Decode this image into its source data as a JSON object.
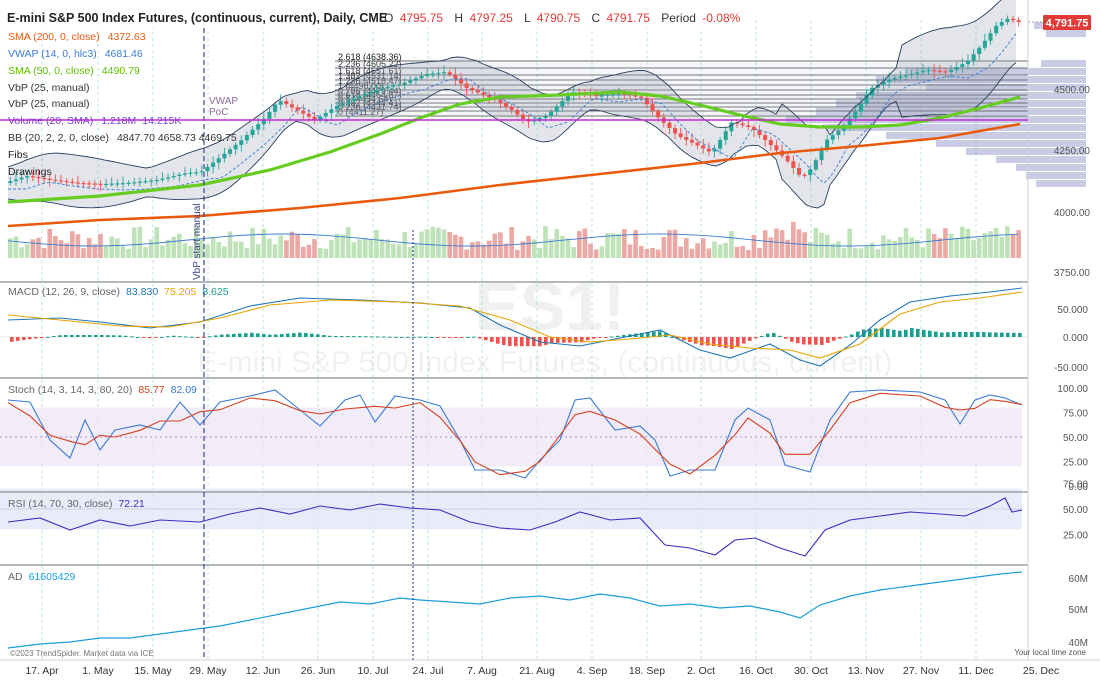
{
  "header": {
    "title": "E-mini S&P 500 Index Futures, (continuous, current), Daily, CME",
    "o_label": "O",
    "o_value": "4795.75",
    "h_label": "H",
    "h_value": "4797.25",
    "l_label": "L",
    "l_value": "4790.75",
    "c_label": "C",
    "c_value": "4791.75",
    "period_label": "Period",
    "period_value": "-0.08%",
    "last_price": "4,791.75"
  },
  "watermark": {
    "symbol": "ES1!",
    "name": "E-mini S&P 500 Index Futures, (continuous, current)"
  },
  "legend": [
    {
      "id": "sma200",
      "label": "SMA (200, 0, close)",
      "value": "4372.63",
      "color": "#e8590c"
    },
    {
      "id": "vwap",
      "label": "VWAP (14, 0, hlc3)",
      "value": "4681.46",
      "color": "#3a7bd5"
    },
    {
      "id": "sma50",
      "label": "SMA (50, 0, close)",
      "value": "4490.79",
      "color": "#5ec000"
    },
    {
      "id": "vbp1",
      "label": "VbP (25, manual)",
      "value": "",
      "color": "#333333"
    },
    {
      "id": "vbp2",
      "label": "VbP (25, manual)",
      "value": "",
      "color": "#333333"
    },
    {
      "id": "volume",
      "label": "Volume (20, SMA)",
      "value": "1.218M",
      "value2": "14.215K",
      "color": "#7b3fd4"
    },
    {
      "id": "bb",
      "label": "BB (20, 2, 2, 0, close)",
      "value": "4847.70  4658.73  4469.75",
      "color": "#333333"
    },
    {
      "id": "fibs",
      "label": "Fibs",
      "value": "",
      "color": "#222222"
    },
    {
      "id": "drawings",
      "label": "Drawings",
      "value": "",
      "color": "#222222"
    }
  ],
  "fib_labels": [
    "2.618 (4638.36)",
    "2.236 (4605.22)",
    "1.618 (4551.61)",
    "1.382 (4531.14)",
    "1.236 (4518.47)",
    "1 (4498.00)",
    "0.786 (4479.44)",
    "0.618 (4464.87)",
    "0.5 (4454.64)",
    "0.382 (4444.41)",
    "0.236 (4431.74)",
    "0 (4411.27)"
  ],
  "annotations": {
    "vwap_label": "VWAP",
    "poc_label": "PoC",
    "vbp_start_label": "VbP start manual"
  },
  "indicators": {
    "macd": {
      "label": "MACD (12, 26, 9, close)",
      "v1": "83.830",
      "v2": "75.205",
      "v3": "8.625",
      "c1": "#1f77b4",
      "c2": "#e8a400",
      "c3": "#1a9e8f"
    },
    "stoch": {
      "label": "Stoch (14, 3, 14, 3, 80, 20)",
      "v1": "85.77",
      "v2": "82.09",
      "c1": "#d6401f",
      "c2": "#3a7bd5"
    },
    "rsi": {
      "label": "RSI (14, 70, 30, close)",
      "v1": "72.21",
      "c1": "#3b2fbf"
    },
    "ad": {
      "label": "AD",
      "v1": "61605429",
      "c1": "#1b9ed8"
    }
  },
  "axis": {
    "price_ticks": [
      "4500.00",
      "4250.00",
      "4000.00",
      "3750.00"
    ],
    "macd_ticks": [
      "50.000",
      "0.000",
      "-50.000"
    ],
    "stoch_ticks": [
      "100.00",
      "75.00",
      "50.00",
      "25.00",
      "0.00"
    ],
    "rsi_ticks": [
      "75.00",
      "50.00",
      "25.00"
    ],
    "ad_ticks": [
      "60M",
      "50M",
      "40M"
    ],
    "dates": [
      "17. Apr",
      "1. May",
      "15. May",
      "29. May",
      "12. Jun",
      "26. Jun",
      "10. Jul",
      "24. Jul",
      "7. Aug",
      "21. Aug",
      "4. Sep",
      "18. Sep",
      "2. Oct",
      "16. Oct",
      "30. Oct",
      "13. Nov",
      "27. Nov",
      "11. Dec",
      "25. Dec"
    ]
  },
  "footer": {
    "copyright": "©2023 TrendSpider. Market data via ICE",
    "timezone": "Your local time zone"
  },
  "colors": {
    "up": "#26a69a",
    "down": "#ef5350",
    "sma200": "#e8590c",
    "sma50": "#66cc22",
    "bb": "#2a3f5f",
    "price_tag": "#e53935"
  },
  "chart_data": {
    "type": "candlestick",
    "x_range": [
      "2023-04-10",
      "2023-12-27"
    ],
    "price_range": [
      3650,
      4830
    ],
    "closes_key_points": [
      {
        "date": "2023-04-10",
        "close": 4130
      },
      {
        "date": "2023-05-01",
        "close": 4150
      },
      {
        "date": "2023-05-31",
        "close": 4190
      },
      {
        "date": "2023-06-15",
        "close": 4430
      },
      {
        "date": "2023-06-26",
        "close": 4380
      },
      {
        "date": "2023-07-10",
        "close": 4460
      },
      {
        "date": "2023-07-27",
        "close": 4600
      },
      {
        "date": "2023-08-18",
        "close": 4390
      },
      {
        "date": "2023-09-01",
        "close": 4530
      },
      {
        "date": "2023-09-14",
        "close": 4550
      },
      {
        "date": "2023-10-03",
        "close": 4260
      },
      {
        "date": "2023-10-12",
        "close": 4380
      },
      {
        "date": "2023-10-27",
        "close": 4130
      },
      {
        "date": "2023-11-15",
        "close": 4520
      },
      {
        "date": "2023-12-01",
        "close": 4610
      },
      {
        "date": "2023-12-14",
        "close": 4810
      },
      {
        "date": "2023-12-19",
        "close": 4791.75
      }
    ],
    "sma200_last": 4372.63,
    "sma50_last": 4490.79,
    "vwap_last": 4681.46,
    "bb_last": [
      4847.7,
      4658.73,
      4469.75
    ],
    "macd_last": [
      83.83,
      75.205,
      8.625
    ],
    "stoch_last": [
      85.77,
      82.09
    ],
    "rsi_last": 72.21,
    "ad_last": 61605429
  }
}
